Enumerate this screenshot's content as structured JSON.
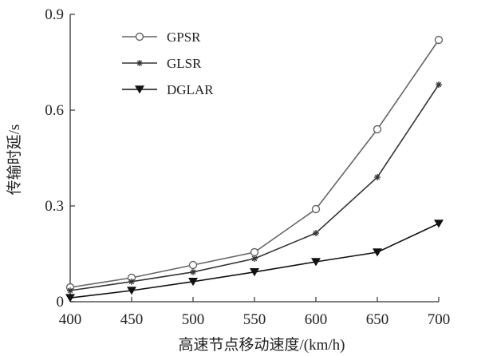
{
  "chart_data": {
    "type": "line",
    "xlabel": "高速节点移动速度/(km/h)",
    "ylabel": "传输时延/s",
    "x": [
      400,
      450,
      500,
      550,
      600,
      650,
      700
    ],
    "xlim": [
      400,
      700
    ],
    "ylim": [
      0,
      0.9
    ],
    "xticks": [
      "400",
      "450",
      "500",
      "550",
      "600",
      "650",
      "700"
    ],
    "yticks": [
      {
        "value": 0,
        "label": "0"
      },
      {
        "value": 0.3,
        "label": "0.3"
      },
      {
        "value": 0.6,
        "label": "0.6"
      },
      {
        "value": 0.9,
        "label": "0.9"
      }
    ],
    "grid": false,
    "legend": "top-left",
    "series": [
      {
        "name": "GPSR",
        "marker": "open-circle",
        "color": "#666666",
        "values": [
          0.045,
          0.075,
          0.115,
          0.155,
          0.29,
          0.54,
          0.82
        ]
      },
      {
        "name": "GLSR",
        "marker": "star",
        "color": "#333333",
        "values": [
          0.035,
          0.063,
          0.093,
          0.135,
          0.215,
          0.39,
          0.68
        ]
      },
      {
        "name": "DGLAR",
        "marker": "filled-down-triangle",
        "color": "#111111",
        "values": [
          0.012,
          0.035,
          0.063,
          0.093,
          0.125,
          0.155,
          0.245
        ]
      }
    ]
  }
}
